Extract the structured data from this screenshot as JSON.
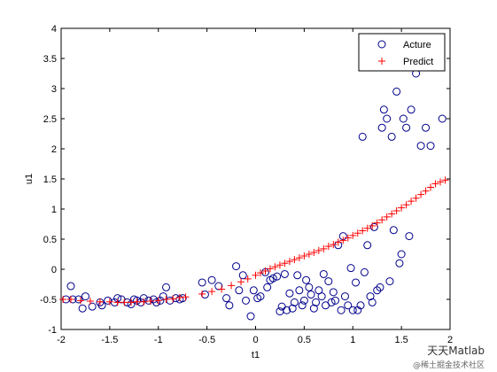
{
  "chart_data": {
    "type": "scatter",
    "xlabel": "t1",
    "ylabel": "u1",
    "xlim": [
      -2,
      2
    ],
    "ylim": [
      -1,
      4
    ],
    "xticks": [
      -2,
      -1.5,
      -1,
      -0.5,
      0,
      0.5,
      1,
      1.5,
      2
    ],
    "xtick_labels": [
      "-2",
      "-1.5",
      "-1",
      "-0.5",
      "0",
      "0.5",
      "1",
      "1.5",
      "2"
    ],
    "yticks": [
      -1,
      -0.5,
      0,
      0.5,
      1,
      1.5,
      2,
      2.5,
      3,
      3.5,
      4
    ],
    "ytick_labels": [
      "-1",
      "-0.5",
      "0",
      "0.5",
      "1",
      "1.5",
      "2",
      "2.5",
      "3",
      "3.5",
      "4"
    ],
    "grid": false,
    "legend_position": "top-right",
    "series": [
      {
        "name": "Acture",
        "marker": "circle",
        "color": "#00008b",
        "points": [
          [
            -1.95,
            -0.5
          ],
          [
            -1.9,
            -0.28
          ],
          [
            -1.88,
            -0.5
          ],
          [
            -1.82,
            -0.5
          ],
          [
            -1.78,
            -0.65
          ],
          [
            -1.75,
            -0.45
          ],
          [
            -1.68,
            -0.62
          ],
          [
            -1.6,
            -0.55
          ],
          [
            -1.58,
            -0.6
          ],
          [
            -1.52,
            -0.52
          ],
          [
            -1.45,
            -0.55
          ],
          [
            -1.42,
            -0.48
          ],
          [
            -1.38,
            -0.5
          ],
          [
            -1.32,
            -0.55
          ],
          [
            -1.28,
            -0.58
          ],
          [
            -1.25,
            -0.5
          ],
          [
            -1.22,
            -0.52
          ],
          [
            -1.18,
            -0.55
          ],
          [
            -1.15,
            -0.48
          ],
          [
            -1.1,
            -0.52
          ],
          [
            -1.05,
            -0.5
          ],
          [
            -1.02,
            -0.55
          ],
          [
            -0.98,
            -0.52
          ],
          [
            -0.95,
            -0.45
          ],
          [
            -0.92,
            -0.3
          ],
          [
            -0.88,
            -0.52
          ],
          [
            -0.82,
            -0.48
          ],
          [
            -0.78,
            -0.5
          ],
          [
            -0.75,
            -0.48
          ],
          [
            -0.55,
            -0.22
          ],
          [
            -0.52,
            -0.42
          ],
          [
            -0.45,
            -0.18
          ],
          [
            -0.38,
            -0.28
          ],
          [
            -0.3,
            -0.48
          ],
          [
            -0.27,
            -0.6
          ],
          [
            -0.2,
            0.05
          ],
          [
            -0.17,
            -0.35
          ],
          [
            -0.13,
            -0.1
          ],
          [
            -0.1,
            -0.52
          ],
          [
            -0.05,
            -0.78
          ],
          [
            -0.02,
            -0.35
          ],
          [
            0.02,
            -0.48
          ],
          [
            0.05,
            -0.45
          ],
          [
            0.1,
            -0.05
          ],
          [
            0.12,
            -0.3
          ],
          [
            0.15,
            -0.18
          ],
          [
            0.18,
            -0.15
          ],
          [
            0.22,
            -0.12
          ],
          [
            0.25,
            -0.7
          ],
          [
            0.27,
            -0.62
          ],
          [
            0.3,
            -0.08
          ],
          [
            0.32,
            -0.68
          ],
          [
            0.35,
            -0.4
          ],
          [
            0.38,
            -0.65
          ],
          [
            0.4,
            -0.55
          ],
          [
            0.43,
            -0.1
          ],
          [
            0.45,
            -0.35
          ],
          [
            0.48,
            -0.6
          ],
          [
            0.5,
            -0.52
          ],
          [
            0.52,
            -0.18
          ],
          [
            0.55,
            -0.3
          ],
          [
            0.57,
            -0.42
          ],
          [
            0.6,
            -0.65
          ],
          [
            0.62,
            -0.55
          ],
          [
            0.65,
            -0.35
          ],
          [
            0.68,
            -0.45
          ],
          [
            0.7,
            -0.08
          ],
          [
            0.72,
            -0.6
          ],
          [
            0.75,
            -0.2
          ],
          [
            0.78,
            -0.55
          ],
          [
            0.8,
            -0.38
          ],
          [
            0.82,
            -0.52
          ],
          [
            0.85,
            0.4
          ],
          [
            0.88,
            -0.68
          ],
          [
            0.9,
            0.55
          ],
          [
            0.92,
            -0.45
          ],
          [
            0.95,
            -0.6
          ],
          [
            0.98,
            0.02
          ],
          [
            1.0,
            -0.68
          ],
          [
            1.03,
            -0.22
          ],
          [
            1.05,
            -0.68
          ],
          [
            1.08,
            -0.6
          ],
          [
            1.1,
            2.2
          ],
          [
            1.12,
            -0.05
          ],
          [
            1.15,
            0.4
          ],
          [
            1.18,
            -0.45
          ],
          [
            1.2,
            -0.55
          ],
          [
            1.22,
            0.7
          ],
          [
            1.25,
            -0.35
          ],
          [
            1.28,
            -0.3
          ],
          [
            1.3,
            2.35
          ],
          [
            1.32,
            2.65
          ],
          [
            1.35,
            2.5
          ],
          [
            1.38,
            -0.2
          ],
          [
            1.4,
            2.2
          ],
          [
            1.42,
            0.65
          ],
          [
            1.45,
            2.95
          ],
          [
            1.48,
            0.1
          ],
          [
            1.5,
            0.25
          ],
          [
            1.52,
            2.5
          ],
          [
            1.55,
            2.35
          ],
          [
            1.58,
            0.55
          ],
          [
            1.6,
            2.65
          ],
          [
            1.65,
            3.25
          ],
          [
            1.7,
            2.05
          ],
          [
            1.75,
            2.35
          ],
          [
            1.8,
            2.05
          ],
          [
            1.92,
            2.5
          ]
        ]
      },
      {
        "name": "Predict",
        "marker": "plus",
        "color": "#ff0000",
        "points": [
          [
            -1.98,
            -0.5
          ],
          [
            -1.9,
            -0.5
          ],
          [
            -1.8,
            -0.52
          ],
          [
            -1.7,
            -0.53
          ],
          [
            -1.6,
            -0.54
          ],
          [
            -1.5,
            -0.54
          ],
          [
            -1.42,
            -0.55
          ],
          [
            -1.35,
            -0.55
          ],
          [
            -1.28,
            -0.55
          ],
          [
            -1.22,
            -0.54
          ],
          [
            -1.15,
            -0.54
          ],
          [
            -1.08,
            -0.53
          ],
          [
            -1.0,
            -0.52
          ],
          [
            -0.92,
            -0.5
          ],
          [
            -0.85,
            -0.49
          ],
          [
            -0.78,
            -0.47
          ],
          [
            -0.72,
            -0.46
          ],
          [
            -0.55,
            -0.41
          ],
          [
            -0.45,
            -0.37
          ],
          [
            -0.35,
            -0.33
          ],
          [
            -0.25,
            -0.27
          ],
          [
            -0.15,
            -0.21
          ],
          [
            -0.08,
            -0.16
          ],
          [
            0.0,
            -0.1
          ],
          [
            0.05,
            -0.06
          ],
          [
            0.1,
            -0.03
          ],
          [
            0.15,
            0.01
          ],
          [
            0.2,
            0.04
          ],
          [
            0.25,
            0.07
          ],
          [
            0.3,
            0.1
          ],
          [
            0.35,
            0.13
          ],
          [
            0.4,
            0.16
          ],
          [
            0.45,
            0.19
          ],
          [
            0.5,
            0.22
          ],
          [
            0.55,
            0.25
          ],
          [
            0.6,
            0.28
          ],
          [
            0.65,
            0.31
          ],
          [
            0.7,
            0.34
          ],
          [
            0.75,
            0.38
          ],
          [
            0.8,
            0.41
          ],
          [
            0.85,
            0.45
          ],
          [
            0.9,
            0.48
          ],
          [
            0.95,
            0.52
          ],
          [
            1.0,
            0.56
          ],
          [
            1.05,
            0.6
          ],
          [
            1.1,
            0.64
          ],
          [
            1.15,
            0.68
          ],
          [
            1.2,
            0.72
          ],
          [
            1.25,
            0.77
          ],
          [
            1.3,
            0.82
          ],
          [
            1.35,
            0.87
          ],
          [
            1.4,
            0.92
          ],
          [
            1.45,
            0.97
          ],
          [
            1.5,
            1.02
          ],
          [
            1.55,
            1.07
          ],
          [
            1.6,
            1.13
          ],
          [
            1.65,
            1.18
          ],
          [
            1.7,
            1.24
          ],
          [
            1.75,
            1.3
          ],
          [
            1.8,
            1.36
          ],
          [
            1.85,
            1.42
          ],
          [
            1.9,
            1.45
          ],
          [
            1.95,
            1.48
          ]
        ]
      }
    ]
  },
  "watermark": {
    "main": "天天Matlab",
    "sub": "@稀土掘金技术社区"
  }
}
